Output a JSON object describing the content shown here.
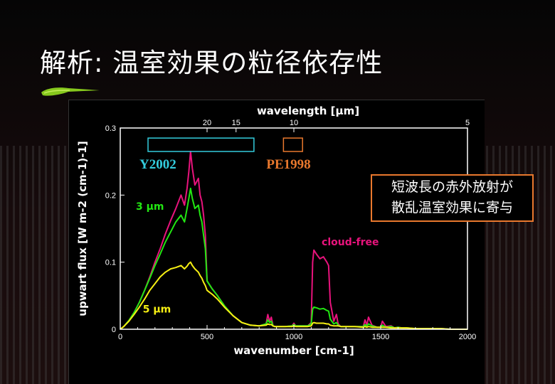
{
  "slide": {
    "title": "解析: 温室効果の粒径依存性",
    "callout_lines": [
      "短波長の赤外放射が",
      "散乱温室効果に寄与"
    ]
  },
  "colors": {
    "cloud_free": "#e8137c",
    "r3um": "#22e612",
    "r5um": "#f6ef13",
    "y2002": "#33ccdd",
    "pe1998": "#e9782d",
    "callout_border": "#e9782d"
  },
  "chart_data": {
    "type": "line",
    "title": "",
    "xlabel": "wavenumber [cm-1]",
    "ylabel": "upwart flux [W m-2 (cm-1)-1]",
    "top_axis_label": "wavelength [μm]",
    "xlim": [
      0,
      2000
    ],
    "ylim": [
      0,
      0.3
    ],
    "x_ticks": [
      0,
      500,
      1000,
      1500,
      2000
    ],
    "y_ticks": [
      0,
      0.1,
      0.2,
      0.3
    ],
    "y_tick_labels": [
      "0",
      "0.1",
      "0.2",
      "0.3"
    ],
    "top_ticks": [
      {
        "label": "20",
        "wavenumber": 500
      },
      {
        "label": "15",
        "wavenumber": 667
      },
      {
        "label": "10",
        "wavenumber": 1000
      },
      {
        "label": "5",
        "wavenumber": 2000
      }
    ],
    "band_annotations": [
      {
        "label": "Y2002",
        "x_range": [
          160,
          770
        ],
        "y_range": [
          0.265,
          0.285
        ]
      },
      {
        "label": "PE1998",
        "x_range": [
          940,
          1050
        ],
        "y_range": [
          0.265,
          0.285
        ]
      }
    ],
    "series": [
      {
        "name": "cloud-free",
        "x": [
          0,
          20,
          50,
          80,
          110,
          140,
          170,
          200,
          230,
          260,
          290,
          320,
          350,
          370,
          385,
          395,
          405,
          415,
          430,
          450,
          460,
          470,
          480,
          490,
          500,
          530,
          560,
          600,
          650,
          700,
          750,
          800,
          840,
          850,
          860,
          870,
          880,
          890,
          900,
          950,
          990,
          1000,
          1010,
          1040,
          1080,
          1100,
          1108,
          1115,
          1130,
          1150,
          1170,
          1190,
          1200,
          1210,
          1230,
          1245,
          1255,
          1270,
          1300,
          1350,
          1400,
          1410,
          1420,
          1430,
          1450,
          1480,
          1500,
          1510,
          1530,
          1560,
          1580,
          1600,
          1620,
          1650,
          1700,
          1750,
          1800,
          1850,
          1900,
          1950,
          2000
        ],
        "y": [
          0.0,
          0.004,
          0.013,
          0.025,
          0.04,
          0.058,
          0.078,
          0.1,
          0.12,
          0.142,
          0.162,
          0.18,
          0.2,
          0.185,
          0.21,
          0.235,
          0.265,
          0.24,
          0.215,
          0.225,
          0.2,
          0.19,
          0.17,
          0.14,
          0.072,
          0.06,
          0.05,
          0.035,
          0.02,
          0.01,
          0.006,
          0.005,
          0.008,
          0.022,
          0.012,
          0.018,
          0.005,
          0.004,
          0.004,
          0.004,
          0.005,
          0.009,
          0.005,
          0.005,
          0.005,
          0.01,
          0.1,
          0.118,
          0.112,
          0.105,
          0.108,
          0.1,
          0.095,
          0.04,
          0.012,
          0.022,
          0.008,
          0.004,
          0.004,
          0.004,
          0.004,
          0.014,
          0.006,
          0.018,
          0.006,
          0.003,
          0.003,
          0.012,
          0.004,
          0.005,
          0.002,
          0.003,
          0.002,
          0.002,
          0.001,
          0.001,
          0.001,
          0.001,
          0.0,
          0.0,
          0.0
        ]
      },
      {
        "name": "3 μm",
        "x": [
          0,
          20,
          50,
          80,
          110,
          140,
          170,
          200,
          230,
          260,
          290,
          320,
          350,
          370,
          385,
          395,
          405,
          415,
          430,
          450,
          460,
          470,
          480,
          490,
          500,
          530,
          560,
          600,
          650,
          700,
          750,
          800,
          840,
          850,
          860,
          870,
          880,
          890,
          900,
          950,
          990,
          1000,
          1010,
          1040,
          1080,
          1100,
          1108,
          1115,
          1130,
          1150,
          1170,
          1190,
          1200,
          1210,
          1230,
          1245,
          1255,
          1270,
          1300,
          1350,
          1400,
          1410,
          1420,
          1430,
          1450,
          1480,
          1500,
          1510,
          1530,
          1560,
          1580,
          1600,
          1620,
          1650,
          1700,
          1750,
          1800,
          1850,
          1900,
          1950,
          2000
        ],
        "y": [
          0.0,
          0.004,
          0.013,
          0.025,
          0.04,
          0.058,
          0.076,
          0.095,
          0.112,
          0.13,
          0.145,
          0.16,
          0.17,
          0.16,
          0.18,
          0.195,
          0.21,
          0.195,
          0.18,
          0.185,
          0.17,
          0.16,
          0.14,
          0.12,
          0.072,
          0.06,
          0.05,
          0.035,
          0.02,
          0.01,
          0.006,
          0.005,
          0.008,
          0.014,
          0.01,
          0.012,
          0.005,
          0.004,
          0.004,
          0.004,
          0.005,
          0.007,
          0.005,
          0.005,
          0.005,
          0.008,
          0.03,
          0.033,
          0.032,
          0.03,
          0.031,
          0.028,
          0.027,
          0.015,
          0.008,
          0.01,
          0.006,
          0.004,
          0.004,
          0.004,
          0.004,
          0.007,
          0.005,
          0.008,
          0.005,
          0.003,
          0.003,
          0.006,
          0.003,
          0.004,
          0.002,
          0.003,
          0.002,
          0.002,
          0.001,
          0.001,
          0.001,
          0.001,
          0.0,
          0.0,
          0.0
        ]
      },
      {
        "name": "5 μm",
        "x": [
          0,
          20,
          50,
          80,
          110,
          140,
          170,
          200,
          230,
          260,
          290,
          320,
          350,
          370,
          385,
          395,
          405,
          415,
          430,
          450,
          460,
          470,
          480,
          490,
          500,
          530,
          560,
          600,
          650,
          700,
          750,
          800,
          840,
          850,
          860,
          870,
          880,
          890,
          900,
          950,
          990,
          1000,
          1010,
          1040,
          1080,
          1100,
          1108,
          1115,
          1130,
          1150,
          1170,
          1190,
          1200,
          1210,
          1230,
          1245,
          1255,
          1270,
          1300,
          1350,
          1400,
          1410,
          1420,
          1430,
          1450,
          1480,
          1500,
          1510,
          1530,
          1560,
          1580,
          1600,
          1620,
          1650,
          1700,
          1750,
          1800,
          1850,
          1900,
          1950,
          2000
        ],
        "y": [
          0.0,
          0.004,
          0.012,
          0.022,
          0.033,
          0.045,
          0.058,
          0.068,
          0.078,
          0.085,
          0.09,
          0.092,
          0.095,
          0.09,
          0.094,
          0.098,
          0.1,
          0.095,
          0.09,
          0.085,
          0.08,
          0.076,
          0.07,
          0.065,
          0.058,
          0.052,
          0.045,
          0.033,
          0.02,
          0.01,
          0.006,
          0.005,
          0.006,
          0.008,
          0.007,
          0.007,
          0.005,
          0.004,
          0.004,
          0.004,
          0.004,
          0.005,
          0.004,
          0.004,
          0.004,
          0.005,
          0.009,
          0.01,
          0.009,
          0.009,
          0.009,
          0.008,
          0.008,
          0.006,
          0.005,
          0.005,
          0.005,
          0.004,
          0.004,
          0.004,
          0.003,
          0.004,
          0.003,
          0.004,
          0.003,
          0.003,
          0.003,
          0.003,
          0.003,
          0.002,
          0.002,
          0.002,
          0.002,
          0.002,
          0.001,
          0.001,
          0.001,
          0.001,
          0.0,
          0.0,
          0.0
        ]
      }
    ],
    "series_labels": [
      {
        "text": "cloud-free",
        "series": "cloud-free",
        "x": 1160,
        "y": 0.125
      },
      {
        "text": "3 μm",
        "series": "3 μm",
        "x": 90,
        "y": 0.178
      },
      {
        "text": "5 μm",
        "series": "5 μm",
        "x": 130,
        "y": 0.025
      }
    ]
  }
}
